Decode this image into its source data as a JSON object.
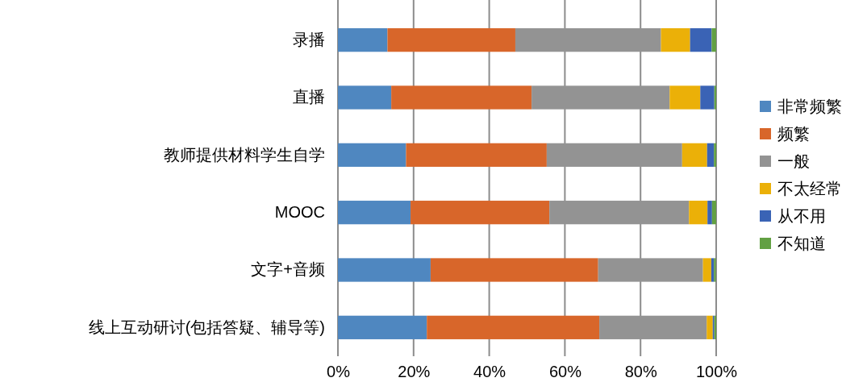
{
  "chart_data": {
    "type": "bar",
    "orientation": "horizontal",
    "stacked": true,
    "categories": [
      "录播",
      "直播",
      "教师提供材料学生自学",
      "MOOC",
      "文字+音频",
      "线上互动研讨(包括答疑、辅导等)"
    ],
    "series": [
      {
        "name": "非常频繁",
        "color": "#4f87c0",
        "values": [
          13.1,
          14.1,
          18.0,
          19.2,
          24.5,
          23.5
        ]
      },
      {
        "name": "频繁",
        "color": "#d8662a",
        "values": [
          33.8,
          37.1,
          37.2,
          36.7,
          44.3,
          45.6
        ]
      },
      {
        "name": "一般",
        "color": "#939393",
        "values": [
          38.5,
          36.5,
          35.8,
          36.9,
          27.7,
          28.4
        ]
      },
      {
        "name": "不太经常",
        "color": "#ebb008",
        "values": [
          7.7,
          8.1,
          6.6,
          4.9,
          2.2,
          1.6
        ]
      },
      {
        "name": "从不用",
        "color": "#3a63b5",
        "values": [
          5.7,
          3.7,
          1.8,
          1.2,
          0.7,
          0.4
        ]
      },
      {
        "name": "不知道",
        "color": "#62a043",
        "values": [
          1.2,
          0.5,
          0.6,
          1.1,
          0.5,
          0.5
        ]
      }
    ],
    "xlim": [
      0,
      100
    ],
    "xticks": [
      {
        "value": 0,
        "label": "0%"
      },
      {
        "value": 20,
        "label": "20%"
      },
      {
        "value": 40,
        "label": "40%"
      },
      {
        "value": 60,
        "label": "60%"
      },
      {
        "value": 80,
        "label": "80%"
      },
      {
        "value": 100,
        "label": "100%"
      }
    ],
    "grid": "x",
    "legend": "right"
  }
}
